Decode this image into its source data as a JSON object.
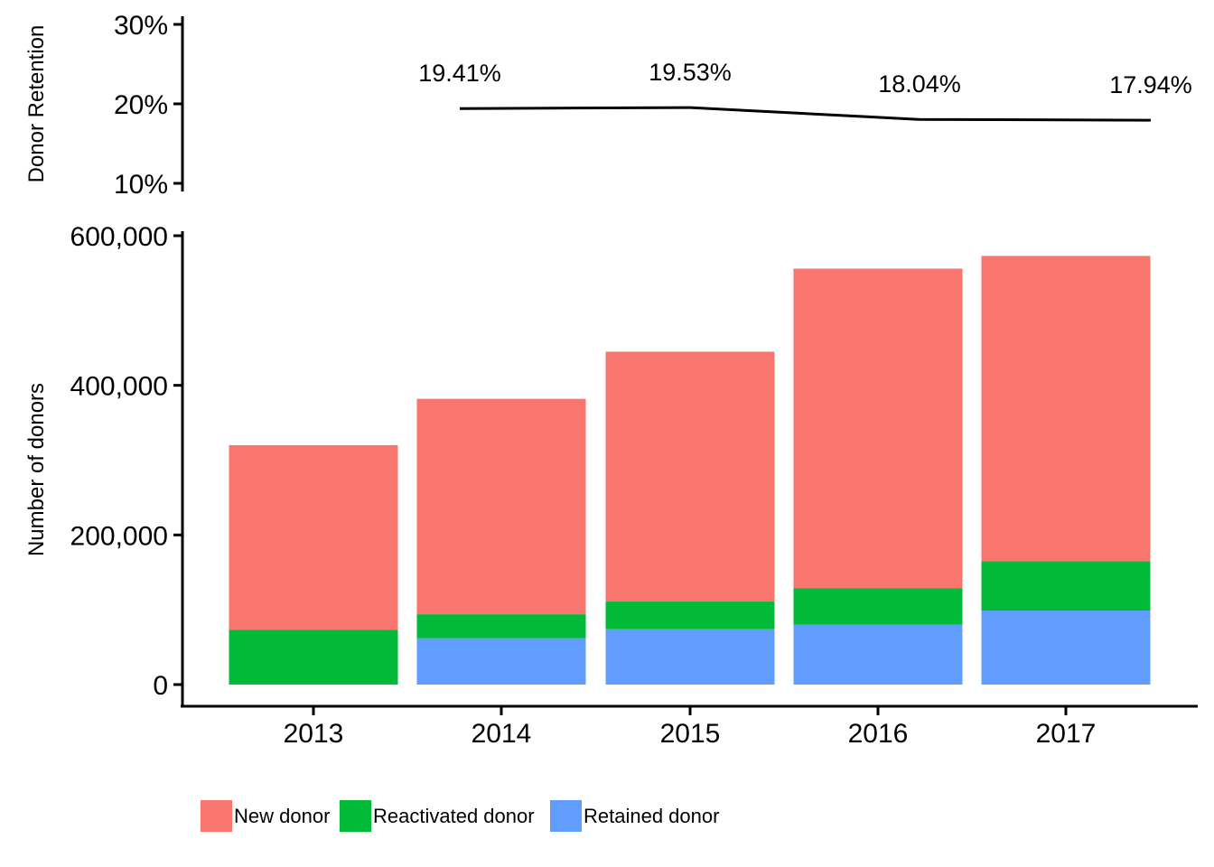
{
  "chart_data": [
    {
      "type": "line",
      "ylabel": "Donor Retention",
      "ylim": [
        0.1,
        0.3
      ],
      "yticks": [
        "10%",
        "20%",
        "30%"
      ],
      "ytick_values": [
        0.1,
        0.2,
        0.3
      ],
      "x": [
        "2014",
        "2015",
        "2016",
        "2017"
      ],
      "series": [
        {
          "values": [
            0.1941,
            0.1953,
            0.1804,
            0.1794
          ],
          "labels": [
            "19.41%",
            "19.53%",
            "18.04%",
            "17.94%"
          ],
          "color": "#000000"
        }
      ],
      "grid": false
    },
    {
      "type": "bar",
      "stacked": true,
      "ylabel": "Number of donors",
      "ylim": [
        0,
        600000
      ],
      "yticks": [
        "0",
        "200,000",
        "400,000",
        "600,000"
      ],
      "ytick_values": [
        0,
        200000,
        400000,
        600000
      ],
      "categories": [
        "2013",
        "2014",
        "2015",
        "2016",
        "2017"
      ],
      "series": [
        {
          "name": "Retained donor",
          "color": "#619CFF",
          "values": [
            0,
            62000,
            74000,
            80000,
            99000
          ]
        },
        {
          "name": "Reactivated donor",
          "color": "#00BA38",
          "values": [
            73000,
            32000,
            37000,
            49000,
            66000
          ]
        },
        {
          "name": "New donor",
          "color": "#F8766D",
          "values": [
            247000,
            288000,
            334000,
            427000,
            408000
          ]
        }
      ],
      "legend": {
        "position": "bottom",
        "order": [
          "New donor",
          "Reactivated donor",
          "Retained donor"
        ]
      },
      "grid": false
    }
  ]
}
